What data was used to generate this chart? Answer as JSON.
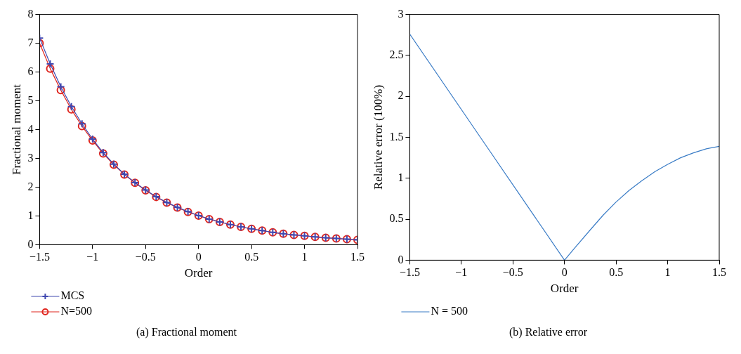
{
  "chart_data": [
    {
      "type": "line",
      "title": "(a) Fractional moment",
      "xlabel": "Order",
      "ylabel": "Fractional moment",
      "x": [
        -1.5,
        -1.4,
        -1.3,
        -1.2,
        -1.1,
        -1.0,
        -0.9,
        -0.8,
        -0.7,
        -0.6,
        -0.5,
        -0.4,
        -0.3,
        -0.2,
        -0.1,
        0,
        0.1,
        0.2,
        0.3,
        0.4,
        0.5,
        0.6,
        0.7,
        0.8,
        0.9,
        1.0,
        1.1,
        1.2,
        1.3,
        1.4,
        1.5
      ],
      "series": [
        {
          "name": "MCS",
          "color": "#3f48b0",
          "marker": "cross",
          "values": [
            7.18,
            6.28,
            5.49,
            4.8,
            4.2,
            3.67,
            3.2,
            2.8,
            2.45,
            2.16,
            1.9,
            1.67,
            1.47,
            1.3,
            1.15,
            1.01,
            0.89,
            0.79,
            0.7,
            0.62,
            0.55,
            0.49,
            0.43,
            0.38,
            0.34,
            0.31,
            0.27,
            0.24,
            0.22,
            0.19,
            0.17
          ]
        },
        {
          "name": "N=500",
          "color": "#e0261f",
          "marker": "circle",
          "values": [
            7.0,
            6.12,
            5.37,
            4.7,
            4.12,
            3.62,
            3.17,
            2.78,
            2.44,
            2.15,
            1.89,
            1.66,
            1.46,
            1.29,
            1.14,
            1.01,
            0.89,
            0.79,
            0.7,
            0.62,
            0.55,
            0.49,
            0.43,
            0.38,
            0.34,
            0.31,
            0.27,
            0.24,
            0.22,
            0.19,
            0.17
          ]
        }
      ],
      "xlim": [
        -1.5,
        1.5
      ],
      "xticks": [
        {
          "value": -1.5,
          "label": "−1.5"
        },
        {
          "value": -1,
          "label": "−1"
        },
        {
          "value": -0.5,
          "label": "−0.5"
        },
        0,
        0.5,
        1,
        1.5
      ],
      "ylim": [
        0,
        8
      ],
      "yticks": [
        0,
        1,
        2,
        3,
        4,
        5,
        6,
        7,
        8
      ],
      "grid": false,
      "legend": "bottom left"
    },
    {
      "type": "line",
      "title": "(b) Relative error",
      "xlabel": "Order",
      "ylabel": "Relative error (100%)",
      "x": [
        -1.5,
        -0.75,
        0,
        0.1,
        0.25,
        0.375,
        0.5,
        0.625,
        0.75,
        0.875,
        1.0,
        1.125,
        1.25,
        1.375,
        1.5
      ],
      "series": [
        {
          "name": "N = 500",
          "color": "#3a7cc6",
          "values": [
            2.76,
            1.38,
            0,
            0.15,
            0.37,
            0.55,
            0.71,
            0.85,
            0.97,
            1.08,
            1.17,
            1.25,
            1.31,
            1.36,
            1.39
          ]
        }
      ],
      "xlim": [
        -1.5,
        1.5
      ],
      "xticks": [
        {
          "value": -1.5,
          "label": "−1.5"
        },
        {
          "value": -1,
          "label": "−1"
        },
        {
          "value": -0.5,
          "label": "−0.5"
        },
        0,
        0.5,
        1,
        1.5
      ],
      "ylim": [
        0,
        3
      ],
      "yticks": [
        0,
        0.5,
        1,
        1.5,
        2,
        2.5,
        3
      ],
      "grid": false,
      "marker": "none",
      "legend": "bottom left"
    }
  ]
}
